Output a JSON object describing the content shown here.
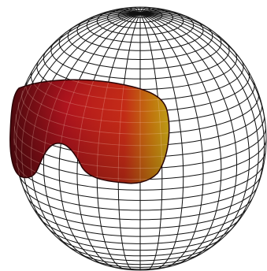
{
  "scene": {
    "subject": "goggle-lens-on-wireframe-sphere",
    "colors": {
      "background": "#ffffff",
      "grid_line": "#111111",
      "lens_dark": "#5a0a10",
      "lens_mid": "#b0141e",
      "lens_bright": "#e4321a",
      "lens_edge": "#f59a12",
      "lens_glow": "#ffd21e"
    },
    "grid": {
      "latitude_lines": 36,
      "longitude_lines": 36,
      "tilt_degrees": 18
    }
  }
}
